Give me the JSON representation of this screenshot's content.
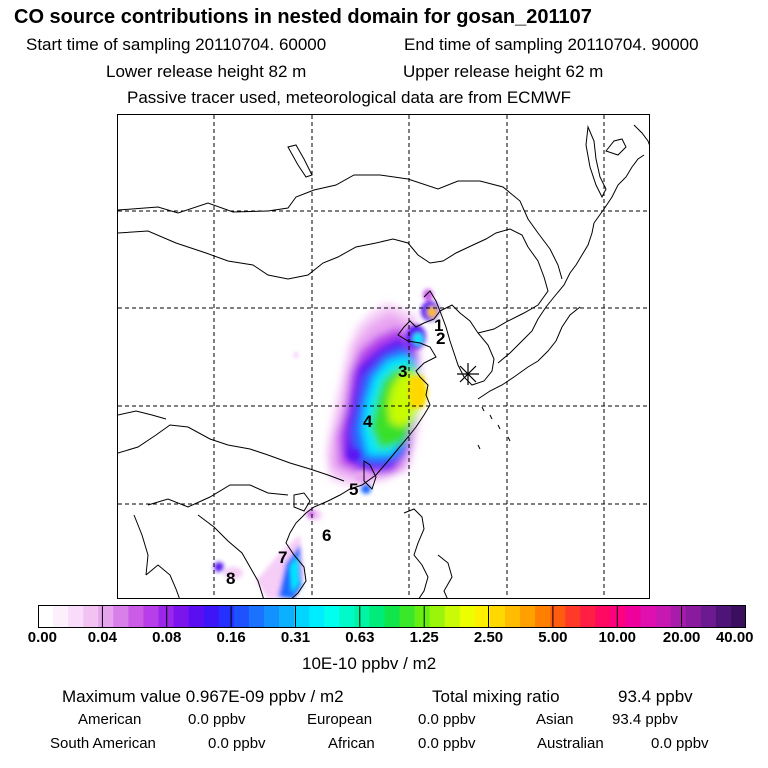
{
  "header": {
    "title": "CO  source contributions in nested domain for gosan_201107",
    "start_label": "Start time of sampling 20110704. 60000",
    "end_label": "End time of sampling 20110704. 90000",
    "lower_label": "Lower release height   82 m",
    "upper_label": "Upper release height   62 m",
    "tracer_label": "Passive tracer used, meteorological data are from ECMWF"
  },
  "chart_data": {
    "type": "heatmap",
    "title": "CO  source contributions in nested domain for gosan_201107",
    "units": "10E-10 ppbv / m2",
    "colorbar_ticks": [
      "0.00",
      "0.04",
      "0.08",
      "0.16",
      "0.31",
      "0.63",
      "1.25",
      "2.50",
      "5.00",
      "10.00",
      "20.00",
      "40.00"
    ],
    "colorbar_colors": [
      "#ffffff",
      "#fdf0fd",
      "#f9dcf9",
      "#f2c2f2",
      "#e6a3ee",
      "#d97fea",
      "#cc5ce8",
      "#b73ee8",
      "#9b26ea",
      "#7c14ee",
      "#5c0ef3",
      "#3d16f8",
      "#2530ff",
      "#1f52ff",
      "#1a72ff",
      "#1292ff",
      "#0cb0ff",
      "#00d4ff",
      "#00ecff",
      "#00ffee",
      "#00fbc8",
      "#00f5a3",
      "#00ec7a",
      "#10e54c",
      "#3ae82a",
      "#69ee14",
      "#9bf50a",
      "#c8fb05",
      "#ecff00",
      "#ffef00",
      "#ffd800",
      "#ffbc00",
      "#ff9f00",
      "#ff7f00",
      "#ff5c10",
      "#ff3a28",
      "#ff1f44",
      "#ff0a63",
      "#ff0080",
      "#f0009a",
      "#e00fb0",
      "#c818b2",
      "#a81cab",
      "#8a1b9f",
      "#6c1a8f",
      "#4f1478",
      "#3a0f5e"
    ],
    "site_marker": "gosan",
    "labels": [
      "1",
      "2",
      "3",
      "4",
      "5",
      "6",
      "7",
      "8"
    ],
    "grid": true
  },
  "stats": {
    "max_label": "Maximum value  0.967E-09 ppbv / m2",
    "total_label": "Total mixing ratio",
    "total_value": "93.4 ppbv",
    "regions": [
      {
        "name": "American",
        "value": "0.0 ppbv"
      },
      {
        "name": "European",
        "value": "0.0 ppbv"
      },
      {
        "name": "Asian",
        "value": "93.4 ppbv"
      },
      {
        "name": "South American",
        "value": "0.0 ppbv"
      },
      {
        "name": "African",
        "value": "0.0 ppbv"
      },
      {
        "name": "Australian",
        "value": "0.0 ppbv"
      }
    ]
  }
}
